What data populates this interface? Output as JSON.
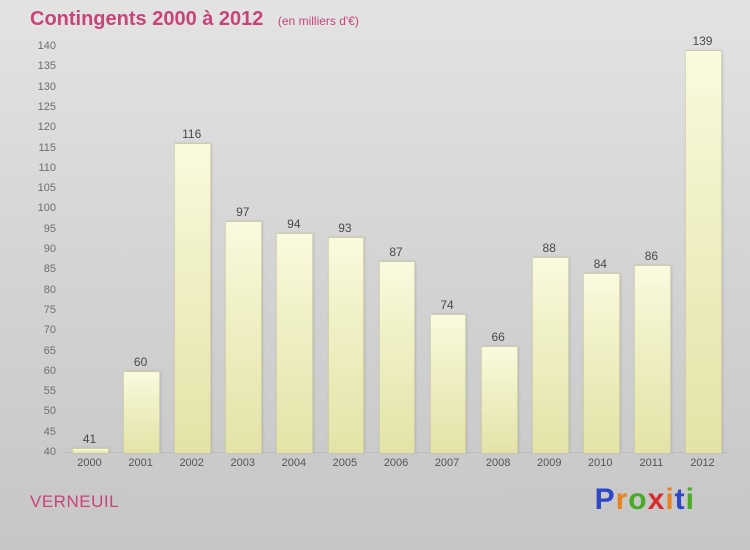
{
  "header": {
    "title": "Contingents 2000 à 2012",
    "subtitle": "(en milliers d'€)"
  },
  "footer": {
    "place": "VERNEUIL"
  },
  "logo": {
    "name": "Proxiti",
    "letters": [
      {
        "ch": "P",
        "color": "#2d47c8"
      },
      {
        "ch": "r",
        "color": "#e8821e"
      },
      {
        "ch": "o",
        "color": "#4aa927"
      },
      {
        "ch": "x",
        "color": "#d92b2b"
      },
      {
        "ch": "i",
        "color": "#e8821e"
      },
      {
        "ch": "t",
        "color": "#2d47c8"
      },
      {
        "ch": "i",
        "color": "#4aa927"
      }
    ]
  },
  "chart_data": {
    "type": "bar",
    "title": "Contingents 2000 à 2012",
    "subtitle": "(en milliers d'€)",
    "categories": [
      "2000",
      "2001",
      "2002",
      "2003",
      "2004",
      "2005",
      "2006",
      "2007",
      "2008",
      "2009",
      "2010",
      "2011",
      "2012"
    ],
    "values": [
      41,
      60,
      116,
      97,
      94,
      93,
      87,
      74,
      66,
      88,
      84,
      86,
      139
    ],
    "xlabel": "",
    "ylabel": "",
    "ylim": [
      40,
      140
    ],
    "ytick_step": 5,
    "grid": false,
    "legend": "none",
    "bar_color": "#efefc0",
    "label_color": "#4a4a4a"
  }
}
